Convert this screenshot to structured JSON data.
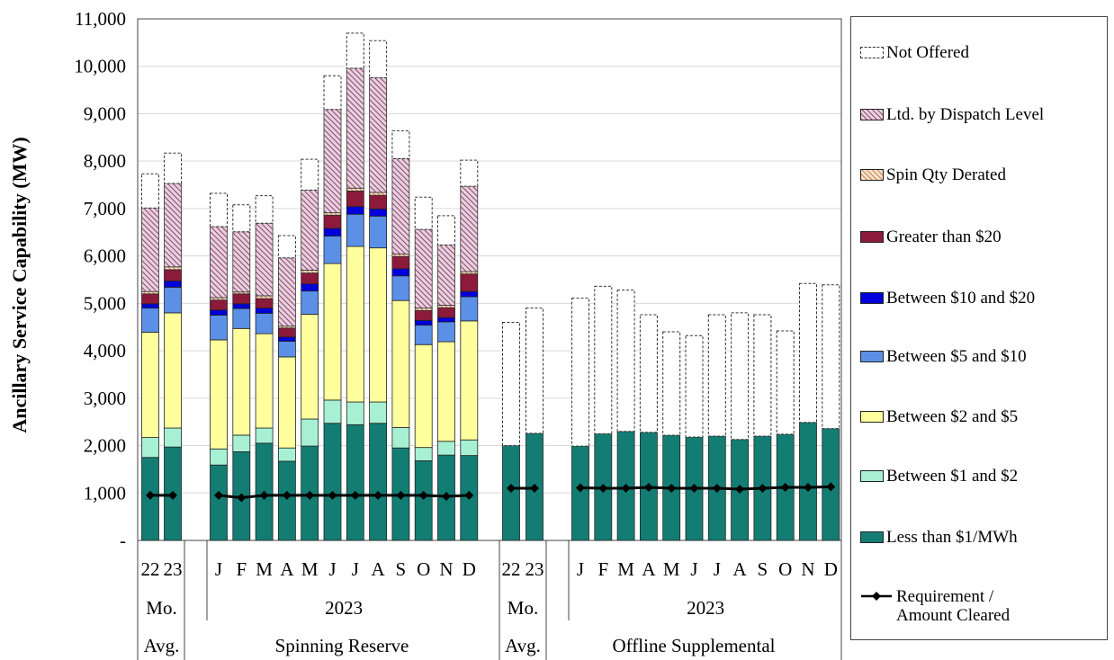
{
  "chart_data": {
    "type": "bar",
    "stacked": true,
    "ylabel": "Ancillary Service Capability (MW)",
    "ylim": [
      0,
      11000
    ],
    "yticks": [
      "-",
      "1,000",
      "2,000",
      "3,000",
      "4,000",
      "5,000",
      "6,000",
      "7,000",
      "8,000",
      "9,000",
      "10,000",
      "11,000"
    ],
    "grid": true,
    "legend_position": "right",
    "groups": [
      {
        "name": "Spinning Reserve",
        "avg_label_top": "Mo.",
        "avg_label_bottom": "Avg.",
        "year_label": "2023"
      },
      {
        "name": "Offline Supplemental",
        "avg_label_top": "Mo.",
        "avg_label_bottom": "Avg.",
        "year_label": "2023"
      }
    ],
    "categories_spin": [
      "22",
      "23",
      "J",
      "F",
      "M",
      "A",
      "M",
      "J",
      "J",
      "A",
      "S",
      "O",
      "N",
      "D"
    ],
    "categories_offline": [
      "22",
      "23",
      "J",
      "F",
      "M",
      "A",
      "M",
      "J",
      "J",
      "A",
      "S",
      "O",
      "N",
      "D"
    ],
    "series": [
      {
        "name": "Less than $1/MWh",
        "color": "#137d73",
        "pattern": "solid",
        "spin": [
          1750,
          1970,
          1590,
          1870,
          2050,
          1670,
          1990,
          2470,
          2440,
          2470,
          1950,
          1680,
          1800,
          1790
        ],
        "offline": [
          2000,
          2260,
          1990,
          2250,
          2300,
          2280,
          2220,
          2180,
          2200,
          2130,
          2200,
          2240,
          2490,
          2360
        ]
      },
      {
        "name": "Between $1 and $2",
        "color": "#a7f0d4",
        "pattern": "solid",
        "spin": [
          420,
          400,
          340,
          350,
          320,
          280,
          570,
          490,
          480,
          450,
          430,
          280,
          290,
          330
        ],
        "offline": [
          0,
          0,
          0,
          0,
          0,
          0,
          0,
          0,
          0,
          0,
          0,
          0,
          0,
          0
        ]
      },
      {
        "name": "Between $2 and $5",
        "color": "#ffff9e",
        "pattern": "solid",
        "spin": [
          2220,
          2430,
          2300,
          2250,
          1990,
          1920,
          2210,
          2880,
          3280,
          3250,
          2680,
          2170,
          2100,
          2510
        ],
        "offline": [
          0,
          0,
          0,
          0,
          0,
          0,
          0,
          0,
          0,
          0,
          0,
          0,
          0,
          0
        ]
      },
      {
        "name": "Between $5 and $10",
        "color": "#5b90e6",
        "pattern": "solid",
        "spin": [
          510,
          540,
          520,
          420,
          430,
          330,
          490,
          580,
          680,
          670,
          520,
          410,
          420,
          510
        ],
        "offline": [
          0,
          0,
          0,
          0,
          0,
          0,
          0,
          0,
          0,
          0,
          0,
          0,
          0,
          0
        ]
      },
      {
        "name": "Between $10 and $20",
        "color": "#0000dd",
        "pattern": "solid",
        "spin": [
          90,
          130,
          110,
          100,
          110,
          90,
          150,
          160,
          160,
          150,
          150,
          100,
          90,
          110
        ],
        "offline": [
          0,
          0,
          0,
          0,
          0,
          0,
          0,
          0,
          0,
          0,
          0,
          0,
          0,
          0
        ]
      },
      {
        "name": "Greater than $20",
        "color": "#8c1a3a",
        "pattern": "solid",
        "spin": [
          210,
          240,
          210,
          210,
          200,
          190,
          230,
          280,
          330,
          290,
          260,
          210,
          210,
          370
        ],
        "offline": [
          0,
          0,
          0,
          0,
          0,
          0,
          0,
          0,
          0,
          0,
          0,
          0,
          0,
          0
        ]
      },
      {
        "name": "Spin Qty Derated",
        "color": "#f5c9a5",
        "pattern": "hatch-peach",
        "spin": [
          50,
          60,
          50,
          40,
          60,
          40,
          60,
          50,
          60,
          60,
          50,
          50,
          50,
          50
        ],
        "offline": [
          0,
          0,
          0,
          0,
          0,
          0,
          0,
          0,
          0,
          0,
          0,
          0,
          0,
          0
        ]
      },
      {
        "name": "Ltd. by Dispatch Level",
        "color": "#d9a8c4",
        "pattern": "hatch-mauve",
        "spin": [
          1760,
          1760,
          1500,
          1270,
          1530,
          1440,
          1690,
          2180,
          2530,
          2420,
          2010,
          1660,
          1270,
          1800
        ],
        "offline": [
          0,
          0,
          0,
          0,
          0,
          0,
          0,
          0,
          0,
          0,
          0,
          0,
          0,
          0
        ]
      },
      {
        "name": "Not Offered",
        "color": "#ffffff",
        "pattern": "dashed",
        "spin": [
          720,
          640,
          700,
          570,
          580,
          470,
          650,
          710,
          740,
          780,
          590,
          680,
          620,
          550
        ],
        "offline": [
          2600,
          2640,
          3120,
          3110,
          2980,
          2480,
          2180,
          2140,
          2560,
          2670,
          2560,
          2180,
          2930,
          3030
        ]
      }
    ],
    "requirement": {
      "name": "Requirement / Amount Cleared",
      "color": "#000000",
      "spin": [
        950,
        950,
        950,
        900,
        950,
        950,
        950,
        950,
        950,
        950,
        950,
        950,
        930,
        950
      ],
      "offline": [
        1100,
        1100,
        1110,
        1100,
        1100,
        1120,
        1100,
        1100,
        1100,
        1080,
        1100,
        1120,
        1120,
        1130
      ]
    }
  },
  "legend": {
    "items": [
      {
        "label": "Not Offered",
        "icon": "dashed-box"
      },
      {
        "label": "Ltd. by Dispatch Level",
        "icon": "hatch-mauve"
      },
      {
        "label": "Spin Qty Derated",
        "icon": "hatch-peach"
      },
      {
        "label": "Greater than $20",
        "icon": "solid"
      },
      {
        "label": "Between $10 and $20",
        "icon": "solid"
      },
      {
        "label": "Between $5 and $10",
        "icon": "solid"
      },
      {
        "label": "Between $2 and $5",
        "icon": "solid"
      },
      {
        "label": "Between $1 and $2",
        "icon": "solid"
      },
      {
        "label": "Less than $1/MWh",
        "icon": "solid"
      }
    ],
    "requirement_label_line1": "Requirement /",
    "requirement_label_line2": "Amount Cleared"
  }
}
